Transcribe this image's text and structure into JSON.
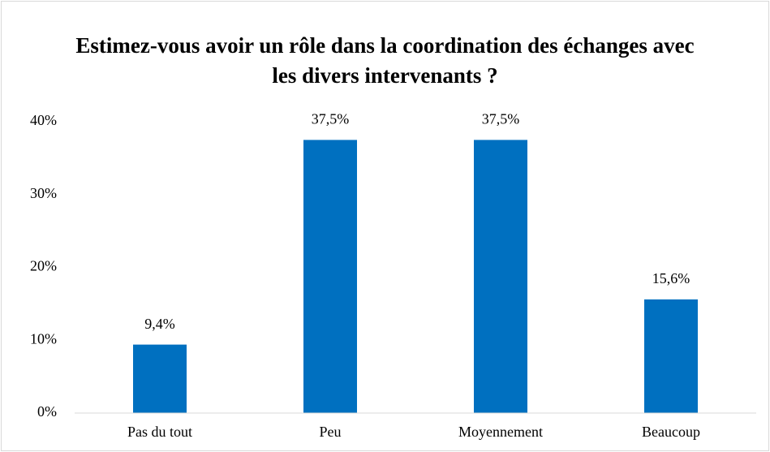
{
  "chart_data": {
    "type": "bar",
    "title": "Estimez-vous avoir un rôle dans la coordination des échanges avec les divers intervenants ?",
    "categories": [
      "Pas du tout",
      "Peu",
      "Moyennement",
      "Beaucoup"
    ],
    "values": [
      9.4,
      37.5,
      37.5,
      15.6
    ],
    "value_labels": [
      "9,4%",
      "37,5%",
      "37,5%",
      "15,6%"
    ],
    "color": "#0070c0",
    "ylim": [
      0,
      40
    ],
    "yticks": [
      {
        "value": 0,
        "label": "0%"
      },
      {
        "value": 10,
        "label": "10%"
      },
      {
        "value": 20,
        "label": "20%"
      },
      {
        "value": 30,
        "label": "30%"
      },
      {
        "value": 40,
        "label": "40%"
      }
    ],
    "grid": false
  }
}
